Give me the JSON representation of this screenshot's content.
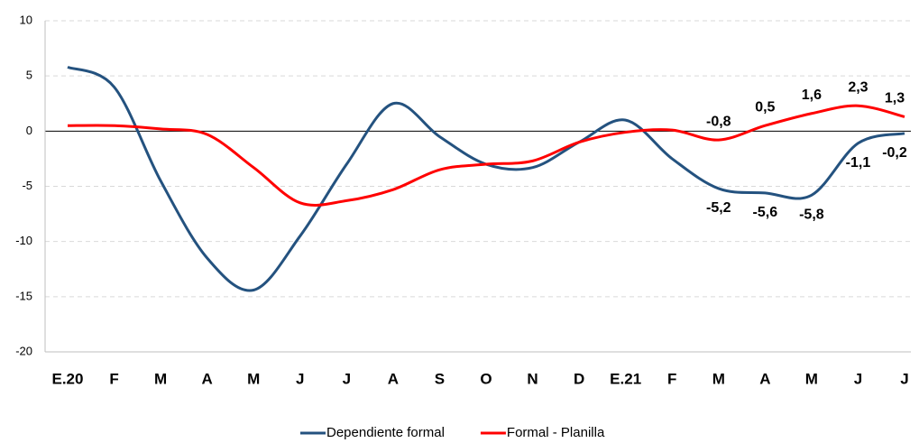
{
  "chart_data": {
    "type": "line",
    "categories": [
      "E.20",
      "F",
      "M",
      "A",
      "M",
      "J",
      "J",
      "A",
      "S",
      "O",
      "N",
      "D",
      "E.21",
      "F",
      "M",
      "A",
      "M",
      "J",
      "J"
    ],
    "series": [
      {
        "name": "Dependiente formal",
        "color": "#24527f",
        "values": [
          5.8,
          4.0,
          -4.5,
          -11.5,
          -14.4,
          -9.5,
          -3.0,
          2.5,
          -0.5,
          -3.0,
          -3.3,
          -1.0,
          1.0,
          -2.5,
          -5.2,
          -5.6,
          -5.8,
          -1.1,
          -0.2
        ],
        "value_labels": [
          null,
          null,
          null,
          null,
          null,
          null,
          null,
          null,
          null,
          null,
          null,
          null,
          null,
          null,
          "-5,2",
          "-5,6",
          "-5,8",
          "-1,1",
          "-0,2"
        ]
      },
      {
        "name": "Formal - Planilla",
        "color": "#ff0000",
        "values": [
          0.5,
          0.5,
          0.2,
          -0.3,
          -3.3,
          -6.5,
          -6.3,
          -5.3,
          -3.5,
          -3.0,
          -2.7,
          -1.0,
          -0.1,
          0.1,
          -0.8,
          0.5,
          1.6,
          2.3,
          1.3
        ],
        "value_labels": [
          null,
          null,
          null,
          null,
          null,
          null,
          null,
          null,
          null,
          null,
          null,
          null,
          null,
          null,
          "-0,8",
          "0,5",
          "1,6",
          "2,3",
          "1,3"
        ]
      }
    ],
    "ylim": [
      -20,
      10
    ],
    "yticks": [
      -20,
      -15,
      -10,
      -5,
      0,
      5,
      10
    ],
    "grid": true,
    "legend": "bottom"
  }
}
